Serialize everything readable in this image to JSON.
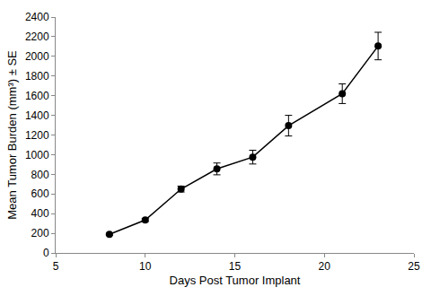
{
  "chart_data": {
    "type": "line",
    "x_label": "Days Post Tumor Implant",
    "y_label": "Mean Tumor Burden (mm³) ± SE",
    "x": [
      8,
      10,
      12,
      14,
      16,
      18,
      21,
      23
    ],
    "series": [
      {
        "color": "#000000",
        "marker": "circle",
        "line_style": "solid",
        "values": [
          190,
          335,
          650,
          855,
          975,
          1295,
          1620,
          2105
        ],
        "error": [
          10,
          15,
          30,
          60,
          70,
          105,
          100,
          140
        ]
      }
    ],
    "xlim": [
      5,
      25
    ],
    "xticks": [
      5,
      10,
      15,
      20,
      25
    ],
    "ylim": [
      0,
      2400
    ],
    "yticks": [
      0,
      200,
      400,
      600,
      800,
      1000,
      1200,
      1400,
      1600,
      1800,
      2000,
      2200,
      2400
    ],
    "grid": false
  }
}
